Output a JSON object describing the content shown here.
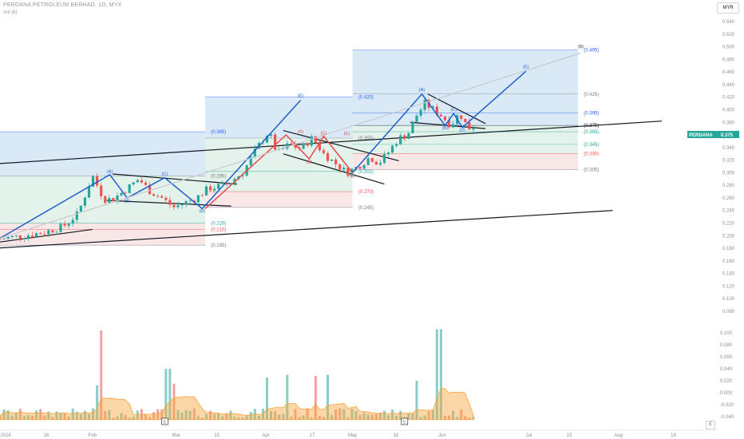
{
  "header": {
    "title": "PERDANA PETROLEUM BERHAD, 1D, MYX",
    "volume_label": "Vol (6)",
    "currency": "MYR"
  },
  "price_tag": {
    "symbol": "PERDANA",
    "value": "0.375"
  },
  "colors": {
    "up": "#26a69a",
    "down": "#ef5350",
    "wave_line": "#1f5ecb",
    "blue_zone": "#bcd7ee",
    "green_zone": "#cce8d8",
    "red_zone": "#f4d3d6",
    "volume_ma": "#f6a53a",
    "tag_bg": "#26a69a",
    "gray_line": "#b0b3bd"
  },
  "chart_data": {
    "type": "candlestick",
    "price_axis": {
      "ylim": [
        0.08,
        0.54
      ],
      "ticks": [
        "0.540",
        "0.520",
        "0.500",
        "0.480",
        "0.460",
        "0.440",
        "0.420",
        "0.400",
        "0.380",
        "0.360",
        "0.340",
        "0.320",
        "0.300",
        "0.280",
        "0.260",
        "0.240",
        "0.220",
        "0.200",
        "0.180",
        "0.160",
        "0.140",
        "0.120",
        "0.100",
        "0.080"
      ]
    },
    "volume_axis": {
      "ylim": [
        -0.052,
        0.112
      ],
      "ticks": [
        "0.100",
        "0.080",
        "0.060",
        "0.040",
        "0.020",
        "0.000",
        "-0.020",
        "-0.040"
      ]
    },
    "time_axis": {
      "labels": [
        {
          "text": "2024",
          "day": 2
        },
        {
          "text": "16",
          "day": 16
        },
        {
          "text": "Feb",
          "day": 32
        },
        {
          "text": "Mar",
          "day": 61
        },
        {
          "text": "15",
          "day": 75
        },
        {
          "text": "Apr",
          "day": 92
        },
        {
          "text": "17",
          "day": 108
        },
        {
          "text": "May",
          "day": 122
        },
        {
          "text": "16",
          "day": 137
        },
        {
          "text": "Jun",
          "day": 153
        },
        {
          "text": "Jul",
          "day": 183
        },
        {
          "text": "15",
          "day": 197
        },
        {
          "text": "Aug",
          "day": 214
        },
        {
          "text": "19",
          "day": 233
        }
      ]
    },
    "ohlc_anchors": [
      {
        "day": 0,
        "close": 0.195
      },
      {
        "day": 8,
        "close": 0.2
      },
      {
        "day": 15,
        "close": 0.205
      },
      {
        "day": 22,
        "close": 0.215
      },
      {
        "day": 27,
        "close": 0.235
      },
      {
        "day": 32,
        "close": 0.295
      },
      {
        "day": 36,
        "close": 0.258
      },
      {
        "day": 39,
        "close": 0.258
      },
      {
        "day": 44,
        "close": 0.275
      },
      {
        "day": 48,
        "close": 0.29
      },
      {
        "day": 52,
        "close": 0.27
      },
      {
        "day": 56,
        "close": 0.26
      },
      {
        "day": 60,
        "close": 0.245
      },
      {
        "day": 64,
        "close": 0.252
      },
      {
        "day": 68,
        "close": 0.26
      },
      {
        "day": 72,
        "close": 0.275
      },
      {
        "day": 78,
        "close": 0.28
      },
      {
        "day": 84,
        "close": 0.3
      },
      {
        "day": 89,
        "close": 0.34
      },
      {
        "day": 93,
        "close": 0.365
      },
      {
        "day": 96,
        "close": 0.33
      },
      {
        "day": 100,
        "close": 0.345
      },
      {
        "day": 104,
        "close": 0.338
      },
      {
        "day": 108,
        "close": 0.355
      },
      {
        "day": 112,
        "close": 0.33
      },
      {
        "day": 116,
        "close": 0.315
      },
      {
        "day": 120,
        "close": 0.3
      },
      {
        "day": 124,
        "close": 0.31
      },
      {
        "day": 128,
        "close": 0.325
      },
      {
        "day": 131,
        "close": 0.315
      },
      {
        "day": 134,
        "close": 0.33
      },
      {
        "day": 138,
        "close": 0.355
      },
      {
        "day": 141,
        "close": 0.36
      },
      {
        "day": 144,
        "close": 0.39
      },
      {
        "day": 147,
        "close": 0.41
      },
      {
        "day": 150,
        "close": 0.4
      },
      {
        "day": 153,
        "close": 0.39
      },
      {
        "day": 156,
        "close": 0.375
      },
      {
        "day": 159,
        "close": 0.395
      },
      {
        "day": 162,
        "close": 0.37
      },
      {
        "day": 164,
        "close": 0.375
      }
    ],
    "volume_spikes": [
      {
        "day": 35,
        "value": 0.104,
        "dir": "down"
      },
      {
        "day": 152,
        "value": 0.106,
        "dir": "up"
      },
      {
        "day": 58,
        "value": 0.04,
        "dir": "up"
      },
      {
        "day": 60,
        "value": 0.015,
        "dir": "down"
      },
      {
        "day": 93,
        "value": 0.025,
        "dir": "up"
      },
      {
        "day": 99,
        "value": 0.03,
        "dir": "up"
      },
      {
        "day": 109,
        "value": 0.028,
        "dir": "down"
      },
      {
        "day": 113,
        "value": 0.03,
        "dir": "up"
      },
      {
        "day": 144,
        "value": 0.02,
        "dir": "up"
      },
      {
        "day": 33,
        "value": 0.012,
        "dir": "up"
      }
    ],
    "fib_zones": [
      {
        "x0": 0,
        "x1": 71,
        "top": 0.365,
        "bottom": 0.295,
        "color": "blue"
      },
      {
        "x0": 0,
        "x1": 71,
        "top": 0.295,
        "bottom": 0.22,
        "color": "green"
      },
      {
        "x0": 0,
        "x1": 71,
        "top": 0.22,
        "bottom": 0.185,
        "color": "red"
      },
      {
        "x0": 71,
        "x1": 122,
        "top": 0.42,
        "bottom": 0.355,
        "color": "blue"
      },
      {
        "x0": 71,
        "x1": 122,
        "top": 0.355,
        "bottom": 0.27,
        "color": "green"
      },
      {
        "x0": 71,
        "x1": 122,
        "top": 0.27,
        "bottom": 0.245,
        "color": "red"
      },
      {
        "x0": 122,
        "x1": 200,
        "top": 0.495,
        "bottom": 0.375,
        "color": "blue"
      },
      {
        "x0": 122,
        "x1": 200,
        "top": 0.375,
        "bottom": 0.33,
        "color": "green"
      },
      {
        "x0": 122,
        "x1": 200,
        "top": 0.33,
        "bottom": 0.305,
        "color": "red"
      }
    ],
    "fib_lines": [
      {
        "x0": 0,
        "x1": 71,
        "y": 0.365,
        "label": "(0.365)",
        "lx": 73,
        "color": "#2962ff"
      },
      {
        "x0": 0,
        "x1": 71,
        "y": 0.295,
        "label": "(0.295)",
        "lx": 73,
        "color": "#787b86"
      },
      {
        "x0": 0,
        "x1": 71,
        "y": 0.22,
        "label": "(0.220)",
        "lx": 73,
        "color": "#26a69a"
      },
      {
        "x0": 0,
        "x1": 71,
        "y": 0.21,
        "label": "(0.210)",
        "lx": 73,
        "color": "#ef5350"
      },
      {
        "x0": 0,
        "x1": 71,
        "y": 0.185,
        "label": "(0.185)",
        "lx": 73,
        "color": "#787b86"
      },
      {
        "x0": 71,
        "x1": 122,
        "y": 0.42,
        "label": "(0.420)",
        "lx": 124,
        "color": "#2962ff"
      },
      {
        "x0": 71,
        "x1": 122,
        "y": 0.355,
        "label": "(0.355)",
        "lx": 124,
        "color": "#787b86"
      },
      {
        "x0": 71,
        "x1": 122,
        "y": 0.302,
        "label": "(0.302)",
        "lx": 124,
        "color": "#26a69a"
      },
      {
        "x0": 71,
        "x1": 122,
        "y": 0.27,
        "label": "(0.270)",
        "lx": 124,
        "color": "#ef5350"
      },
      {
        "x0": 71,
        "x1": 122,
        "y": 0.245,
        "label": "(0.245)",
        "lx": 124,
        "color": "#787b86"
      },
      {
        "x0": 122,
        "x1": 200,
        "y": 0.495,
        "label": "(0.495)",
        "lx": 202,
        "color": "#2962ff"
      },
      {
        "x0": 122,
        "x1": 200,
        "y": 0.425,
        "label": "(0.425)",
        "lx": 202,
        "color": "#787b86"
      },
      {
        "x0": 122,
        "x1": 200,
        "y": 0.395,
        "label": "(0.395)",
        "lx": 202,
        "color": "#2962ff"
      },
      {
        "x0": 122,
        "x1": 200,
        "y": 0.375,
        "label": "(0.375)",
        "lx": 202,
        "color": "#131722"
      },
      {
        "x0": 122,
        "x1": 200,
        "y": 0.365,
        "label": "(0.365)",
        "lx": 202,
        "color": "#26a69a"
      },
      {
        "x0": 122,
        "x1": 200,
        "y": 0.345,
        "label": "(0.345)",
        "lx": 202,
        "color": "#26a69a"
      },
      {
        "x0": 122,
        "x1": 200,
        "y": 0.33,
        "label": "(0.330)",
        "lx": 202,
        "color": "#ef5350"
      },
      {
        "x0": 122,
        "x1": 200,
        "y": 0.305,
        "label": "(0.305)",
        "lx": 202,
        "color": "#787b86"
      }
    ],
    "black_lines": [
      {
        "x0": -2,
        "y0": 0.314,
        "x1": 229,
        "y1": 0.382
      },
      {
        "x0": -2,
        "y0": 0.18,
        "x1": 212,
        "y1": 0.24
      },
      {
        "x0": -2,
        "y0": 0.186,
        "x1": 0,
        "y1": 0.186
      },
      {
        "x0": 0,
        "y0": 0.19,
        "x1": 32,
        "y1": 0.21
      },
      {
        "x0": 39,
        "y0": 0.298,
        "x1": 82,
        "y1": 0.282
      },
      {
        "x0": 37,
        "y0": 0.256,
        "x1": 80,
        "y1": 0.247
      },
      {
        "x0": 98,
        "y0": 0.367,
        "x1": 138,
        "y1": 0.319
      },
      {
        "x0": 98,
        "y0": 0.33,
        "x1": 133,
        "y1": 0.282
      },
      {
        "x0": 148,
        "y0": 0.425,
        "x1": 168,
        "y1": 0.378
      },
      {
        "x0": 142,
        "y0": 0.38,
        "x1": 168,
        "y1": 0.37
      }
    ],
    "wave_lines": [
      {
        "color": "#1f5ecb",
        "points": [
          [
            0,
            0.196
          ],
          [
            38,
            0.297
          ],
          [
            44,
            0.26
          ],
          [
            57,
            0.292
          ],
          [
            70,
            0.243
          ],
          [
            104,
            0.415
          ]
        ]
      },
      {
        "color": "#1f5ecb",
        "points": [
          [
            122,
            0.3
          ],
          [
            146,
            0.425
          ],
          [
            154,
            0.375
          ],
          [
            157,
            0.394
          ],
          [
            160,
            0.372
          ],
          [
            182,
            0.461
          ]
        ]
      },
      {
        "color": "#e24c4c",
        "points": [
          [
            71,
            0.243
          ],
          [
            99,
            0.36
          ],
          [
            107,
            0.322
          ],
          [
            112,
            0.358
          ],
          [
            122,
            0.3
          ]
        ]
      },
      {
        "color": "#c8cad1",
        "points": [
          [
            0,
            0.196
          ],
          [
            201,
            0.49
          ]
        ]
      }
    ],
    "wave_labels": [
      {
        "text": "(A)",
        "day": 38,
        "price": 0.3,
        "color": "#1f5ecb"
      },
      {
        "text": "(B)",
        "day": 44,
        "price": 0.253,
        "color": "#1f5ecb"
      },
      {
        "text": "(C)",
        "day": 57,
        "price": 0.296,
        "color": "#1f5ecb"
      },
      {
        "text": "(D)",
        "day": 70,
        "price": 0.237,
        "color": "#1f5ecb"
      },
      {
        "text": "(E)",
        "day": 104,
        "price": 0.42,
        "color": "#1f5ecb"
      },
      {
        "text": "(A)",
        "day": 104,
        "price": 0.363,
        "color": "#e24c4c"
      },
      {
        "text": "(B)",
        "day": 107,
        "price": 0.315,
        "color": "#e24c4c"
      },
      {
        "text": "(C)",
        "day": 112,
        "price": 0.361,
        "color": "#e24c4c"
      },
      {
        "text": "(D)",
        "day": 122,
        "price": 0.293,
        "color": "#e24c4c"
      },
      {
        "text": "(E)",
        "day": 120,
        "price": 0.36,
        "color": "#e24c4c"
      },
      {
        "text": "(A)",
        "day": 146,
        "price": 0.43,
        "color": "#1f5ecb"
      },
      {
        "text": "(B)",
        "day": 154,
        "price": 0.369,
        "color": "#1f5ecb"
      },
      {
        "text": "(C)",
        "day": 157,
        "price": 0.398,
        "color": "#1f5ecb"
      },
      {
        "text": "(D)",
        "day": 160,
        "price": 0.366,
        "color": "#1f5ecb"
      },
      {
        "text": "(E)",
        "day": 182,
        "price": 0.466,
        "color": "#1f5ecb"
      },
      {
        "text": "(5)",
        "day": 201,
        "price": 0.498,
        "color": "#131722"
      }
    ],
    "event_markers": [
      {
        "day": 57,
        "text": "E"
      },
      {
        "day": 140,
        "text": "E"
      }
    ],
    "legend": "none",
    "grid": false
  },
  "corner_badge": "E"
}
